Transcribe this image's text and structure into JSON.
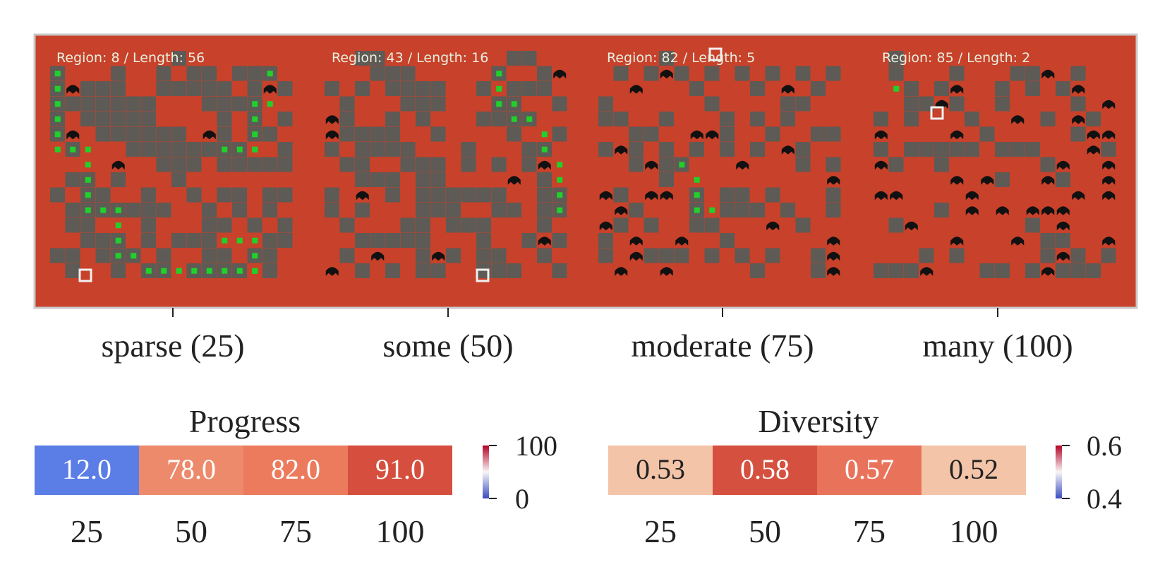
{
  "maps": {
    "panels": [
      {
        "hud": "Region: 8 / Length: 56",
        "label": "sparse (25)"
      },
      {
        "hud": "Region: 43 / Length: 16",
        "label": "some (50)"
      },
      {
        "hud": "Region: 82 / Length: 5",
        "label": "moderate (75)"
      },
      {
        "hud": "Region: 85 / Length: 2",
        "label": "many (100)"
      }
    ],
    "colors": {
      "floor": "#c8412a",
      "wall": "#5e5a55",
      "path": "#1fd12a",
      "enemy": "#111111",
      "marker": "#f0f0f0",
      "frame": "#c8c8c8"
    }
  },
  "chart_data": [
    {
      "type": "heatmap",
      "title": "Progress",
      "categories": [
        "25",
        "50",
        "75",
        "100"
      ],
      "values": [
        12.0,
        78.0,
        82.0,
        91.0
      ],
      "value_labels": [
        "12.0",
        "78.0",
        "82.0",
        "91.0"
      ],
      "colorbar": {
        "min": 0,
        "max": 100,
        "ticks": [
          "100",
          "0"
        ]
      },
      "cell_colors": [
        "#5b7de6",
        "#ee8a6c",
        "#ec7b5d",
        "#d64f3e"
      ],
      "text_colors": [
        "#ffffff",
        "#ffffff",
        "#ffffff",
        "#ffffff"
      ]
    },
    {
      "type": "heatmap",
      "title": "Diversity",
      "categories": [
        "25",
        "50",
        "75",
        "100"
      ],
      "values": [
        0.53,
        0.58,
        0.57,
        0.52
      ],
      "value_labels": [
        "0.53",
        "0.58",
        "0.57",
        "0.52"
      ],
      "colorbar": {
        "min": 0.4,
        "max": 0.6,
        "ticks": [
          "0.6",
          "0.4"
        ]
      },
      "cell_colors": [
        "#f4c4a8",
        "#d6503f",
        "#e9735a",
        "#f4c4a8"
      ],
      "text_colors": [
        "#222222",
        "#ffffff",
        "#ffffff",
        "#222222"
      ]
    }
  ]
}
